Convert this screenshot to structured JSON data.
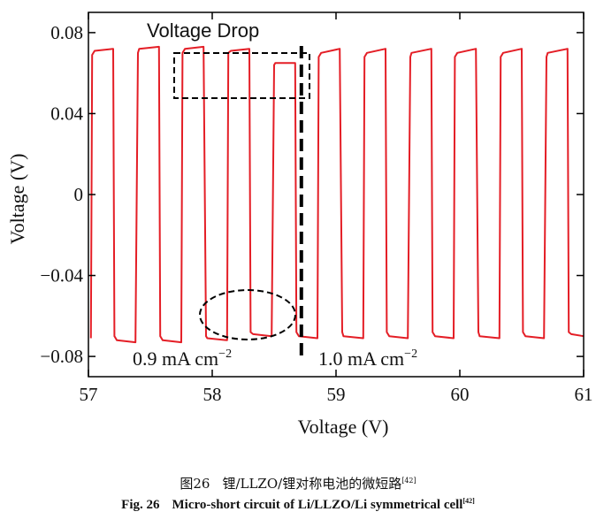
{
  "chart_data": {
    "type": "line",
    "xlabel": "Voltage (V)",
    "ylabel": "Voltage (V)",
    "xlim": [
      57,
      61
    ],
    "ylim": [
      -0.09,
      0.09
    ],
    "xticks": [
      57,
      58,
      59,
      60,
      61
    ],
    "yticks": [
      0.08,
      0.04,
      0,
      -0.04,
      -0.08
    ],
    "ytick_labels": [
      "0.08",
      "0.04",
      "0",
      "−0.04",
      "−0.08"
    ],
    "grid": false,
    "line_color": "#e41e26",
    "series": [
      {
        "x": [
          57.02,
          57.03,
          57.05,
          57.2,
          57.21,
          57.23,
          57.38,
          57.4,
          57.41,
          57.57,
          57.58,
          57.6,
          57.75,
          57.76,
          57.78,
          57.93,
          57.95,
          57.96,
          58.12,
          58.13,
          58.15,
          58.3,
          58.31,
          58.33,
          58.48,
          58.5,
          58.51,
          58.67,
          58.68,
          58.7,
          58.85,
          58.86,
          58.88,
          59.03,
          59.05,
          59.06,
          59.22,
          59.23,
          59.25,
          59.4,
          59.41,
          59.43,
          59.58,
          59.6,
          59.61,
          59.77,
          59.78,
          59.8,
          59.95,
          59.96,
          59.98,
          60.13,
          60.15,
          60.16,
          60.32,
          60.33,
          60.35,
          60.5,
          60.51,
          60.53,
          60.68,
          60.7,
          60.71,
          60.87,
          60.88,
          60.9,
          61.0
        ],
        "y": [
          -0.071,
          0.069,
          0.071,
          0.072,
          -0.07,
          -0.072,
          -0.073,
          0.07,
          0.072,
          0.073,
          -0.07,
          -0.072,
          -0.073,
          0.07,
          0.072,
          0.073,
          -0.07,
          -0.071,
          -0.072,
          0.07,
          0.071,
          0.072,
          -0.068,
          -0.069,
          -0.07,
          0.064,
          0.065,
          0.065,
          -0.068,
          -0.07,
          -0.071,
          0.068,
          0.07,
          0.072,
          -0.068,
          -0.07,
          -0.071,
          0.068,
          0.07,
          0.072,
          -0.068,
          -0.07,
          -0.071,
          0.068,
          0.07,
          0.072,
          -0.068,
          -0.07,
          -0.071,
          0.068,
          0.07,
          0.072,
          -0.068,
          -0.07,
          -0.071,
          0.068,
          0.07,
          0.072,
          -0.068,
          -0.07,
          -0.071,
          0.068,
          0.07,
          0.072,
          -0.068,
          -0.069,
          -0.07
        ]
      }
    ],
    "divider_x": 58.72,
    "annotations": {
      "voltage_drop": "Voltage Drop",
      "left_current": "0.9 mA cm",
      "left_current_exp": "−2",
      "right_current": "1.0 mA cm",
      "right_current_exp": "−2"
    }
  },
  "caption": {
    "cn_fig": "图26",
    "cn_title": "锂/LLZO/锂对称电池的微短路",
    "cn_ref": "[42]",
    "en_fig": "Fig. 26",
    "en_title": "Micro-short circuit of Li/LLZO/Li symmetrical cell",
    "en_ref": "[42]"
  }
}
